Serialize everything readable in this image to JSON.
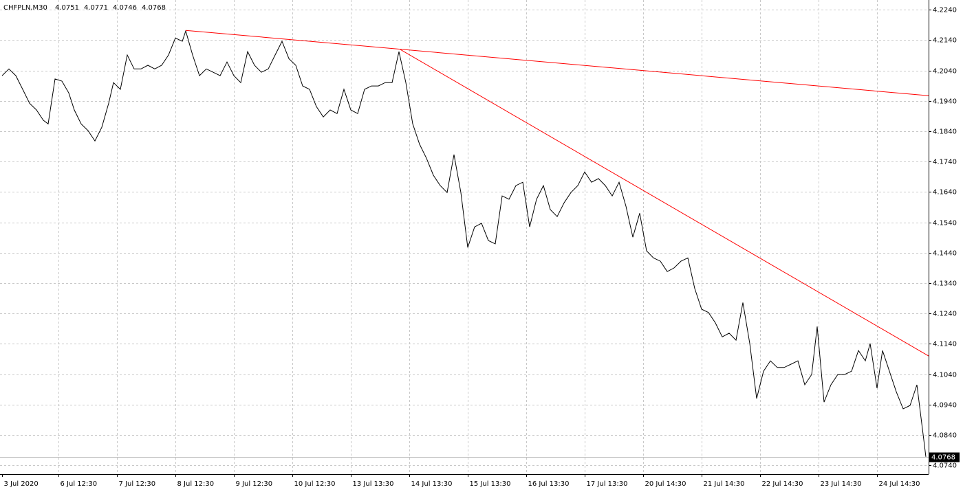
{
  "chart_data": {
    "type": "line",
    "title": "CHFPLN,M30",
    "ohlc": [
      4.0751,
      4.0771,
      4.0746,
      4.0768
    ],
    "grid": true,
    "xlim": [
      -0.3,
      134.7
    ],
    "ylim": [
      4.0711,
      4.2272
    ],
    "xticks": [
      {
        "value": 0,
        "label": "3 Jul 2020"
      },
      {
        "value": 8.2,
        "label": "6 Jul 12:30"
      },
      {
        "value": 16.7,
        "label": "7 Jul 12:30"
      },
      {
        "value": 25.2,
        "label": "8 Jul 12:30"
      },
      {
        "value": 33.7,
        "label": "9 Jul 12:30"
      },
      {
        "value": 42.2,
        "label": "10 Jul 12:30"
      },
      {
        "value": 50.7,
        "label": "13 Jul 13:30"
      },
      {
        "value": 59.2,
        "label": "14 Jul 13:30"
      },
      {
        "value": 67.7,
        "label": "15 Jul 13:30"
      },
      {
        "value": 76.2,
        "label": "16 Jul 13:30"
      },
      {
        "value": 84.7,
        "label": "17 Jul 13:30"
      },
      {
        "value": 93.2,
        "label": "20 Jul 14:30"
      },
      {
        "value": 101.7,
        "label": "21 Jul 14:30"
      },
      {
        "value": 110.2,
        "label": "22 Jul 14:30"
      },
      {
        "value": 118.7,
        "label": "23 Jul 14:30"
      },
      {
        "value": 127.2,
        "label": "24 Jul 14:30"
      }
    ],
    "yticks": [
      {
        "value": 4.224,
        "label": "4.2240"
      },
      {
        "value": 4.214,
        "label": "4.2140"
      },
      {
        "value": 4.204,
        "label": "4.2040"
      },
      {
        "value": 4.194,
        "label": "4.1940"
      },
      {
        "value": 4.184,
        "label": "4.1840"
      },
      {
        "value": 4.174,
        "label": "4.1740"
      },
      {
        "value": 4.164,
        "label": "4.1640"
      },
      {
        "value": 4.154,
        "label": "4.1540"
      },
      {
        "value": 4.144,
        "label": "4.1440"
      },
      {
        "value": 4.134,
        "label": "4.1340"
      },
      {
        "value": 4.124,
        "label": "4.1240"
      },
      {
        "value": 4.114,
        "label": "4.1140"
      },
      {
        "value": 4.104,
        "label": "4.1040"
      },
      {
        "value": 4.094,
        "label": "4.0940"
      },
      {
        "value": 4.084,
        "label": "4.0840"
      },
      {
        "value": 4.074,
        "label": "4.0740"
      }
    ],
    "x": [
      0,
      1,
      2,
      3,
      4,
      5,
      6,
      6.7,
      7.7,
      8.7,
      9.7,
      10.5,
      11.5,
      12.5,
      13.5,
      14.5,
      15.5,
      16.2,
      17.2,
      18.2,
      19.2,
      20.2,
      21.2,
      22.2,
      23.2,
      24.2,
      25.2,
      26.2,
      26.7,
      27.7,
      28.7,
      29.7,
      30.7,
      31.7,
      32.7,
      33.7,
      34.7,
      35.7,
      36.7,
      37.7,
      38.7,
      39.7,
      40.7,
      41.7,
      42.7,
      43.7,
      44.7,
      45.7,
      46.7,
      47.7,
      48.7,
      49.7,
      50.7,
      51.7,
      52.7,
      53.7,
      54.7,
      55.7,
      56.7,
      57.7,
      58.7,
      59.7,
      60.7,
      61.7,
      62.7,
      63.7,
      64.7,
      65.7,
      66.7,
      67.7,
      68.7,
      69.7,
      70.7,
      71.7,
      72.7,
      73.7,
      74.7,
      75.7,
      76.7,
      77.7,
      78.7,
      79.7,
      80.7,
      81.7,
      82.7,
      83.7,
      84.7,
      85.7,
      86.7,
      87.7,
      88.7,
      89.7,
      90.7,
      91.7,
      92.7,
      93.7,
      94.7,
      95.7,
      96.7,
      97.7,
      98.7,
      99.7,
      100.7,
      101.7,
      102.7,
      103.7,
      104.7,
      105.7,
      106.7,
      107.7,
      108.7,
      109.7,
      110.7,
      111.7,
      112.7,
      113.7,
      114.7,
      115.7,
      116.7,
      117.7,
      118.5,
      119.5,
      120.5,
      121.5,
      122.5,
      123.5,
      124.5,
      125.5,
      126.2,
      127.2,
      128,
      129,
      130,
      131,
      132,
      133,
      134,
      134.3
    ],
    "series": [
      {
        "name": "CHFPLN",
        "color": "#000000",
        "values": [
          4.2023,
          4.2045,
          4.2023,
          4.1978,
          4.1932,
          4.191,
          4.1876,
          4.1864,
          4.2012,
          4.2005,
          4.1966,
          4.191,
          4.1864,
          4.1842,
          4.1808,
          4.1853,
          4.1932,
          4.2,
          4.1978,
          4.2091,
          4.2045,
          4.2045,
          4.2057,
          4.2045,
          4.2057,
          4.2091,
          4.2147,
          4.2136,
          4.217,
          4.2091,
          4.2023,
          4.2045,
          4.2034,
          4.2023,
          4.2068,
          4.2023,
          4.2,
          4.2102,
          4.2057,
          4.2034,
          4.2045,
          4.2091,
          4.2136,
          4.2079,
          4.2057,
          4.1989,
          4.1978,
          4.1921,
          4.1887,
          4.191,
          4.1898,
          4.1978,
          4.191,
          4.1898,
          4.1978,
          4.1989,
          4.1989,
          4.2,
          4.2,
          4.2102,
          4.2,
          4.1864,
          4.1797,
          4.1751,
          4.1695,
          4.1661,
          4.1638,
          4.1763,
          4.1638,
          4.1457,
          4.1525,
          4.1537,
          4.148,
          4.1469,
          4.1627,
          4.1616,
          4.1661,
          4.1672,
          4.1525,
          4.1616,
          4.1661,
          4.1582,
          4.1559,
          4.1604,
          4.1638,
          4.1661,
          4.1706,
          4.1672,
          4.1684,
          4.1661,
          4.1627,
          4.1672,
          4.1593,
          4.1491,
          4.157,
          4.1446,
          4.1423,
          4.1412,
          4.1378,
          4.139,
          4.1412,
          4.1423,
          4.1322,
          4.1254,
          4.1243,
          4.1209,
          4.1163,
          4.1175,
          4.1152,
          4.1276,
          4.1141,
          4.096,
          4.105,
          4.1084,
          4.1062,
          4.1062,
          4.1073,
          4.1084,
          4.1005,
          4.1039,
          4.1197,
          4.0948,
          4.1005,
          4.1039,
          4.1039,
          4.105,
          4.1118,
          4.1084,
          4.1141,
          4.0994,
          4.1118,
          4.105,
          4.0982,
          4.0926,
          4.0937,
          4.1005,
          4.0824,
          4.0768
        ]
      }
    ],
    "trendlines": [
      {
        "color": "#ff0000",
        "x": [
          26.7,
          134.7
        ],
        "values": [
          4.2172,
          4.1957
        ]
      },
      {
        "color": "#ff0000",
        "x": [
          57.9,
          134.7
        ],
        "values": [
          4.2109,
          4.11
        ]
      }
    ]
  }
}
